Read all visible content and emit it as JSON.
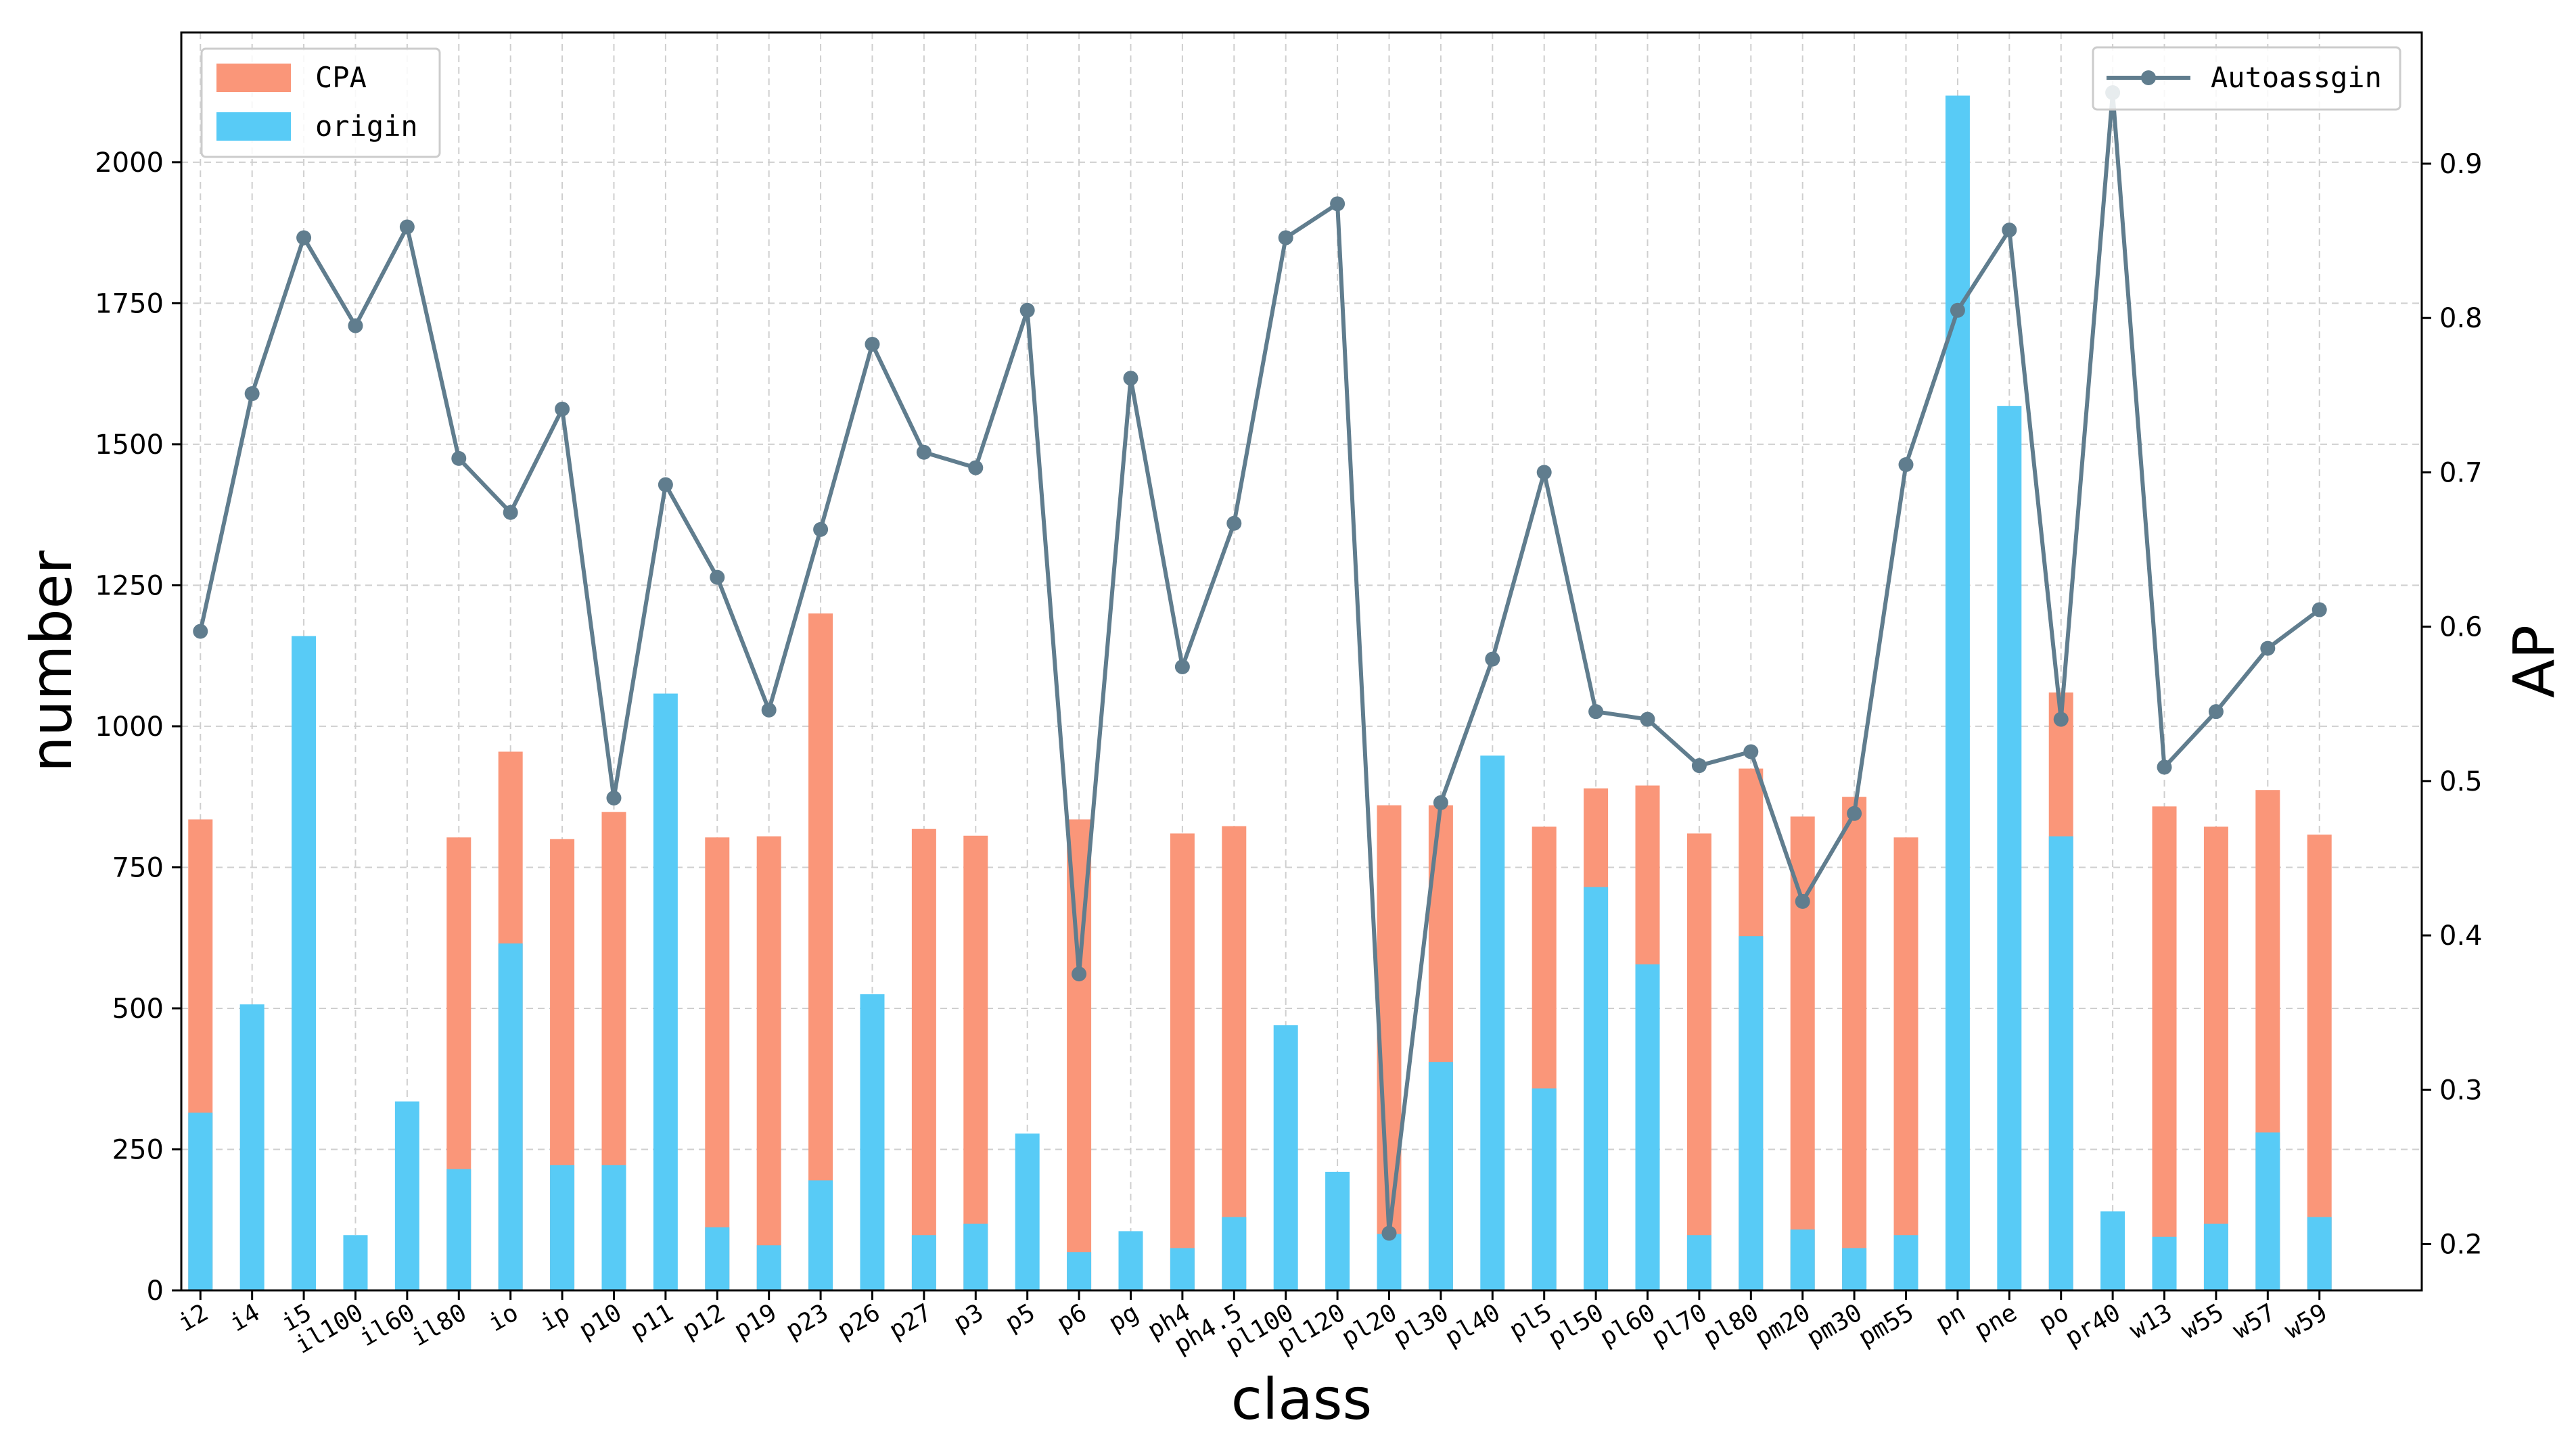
{
  "chart_data": {
    "type": "bar",
    "stacked": true,
    "xlabel": "class",
    "ylabel": "number",
    "y2label": "AP",
    "ylim": [
      0,
      2230
    ],
    "y2lim": [
      0.17,
      0.985
    ],
    "yticks": [
      "0",
      "250",
      "500",
      "750",
      "1000",
      "1250",
      "1500",
      "1750",
      "2000"
    ],
    "y2ticks": [
      "0.2",
      "0.3",
      "0.4",
      "0.5",
      "0.6",
      "0.7",
      "0.8",
      "0.9"
    ],
    "grid": true,
    "categories": [
      "i2",
      "i4",
      "i5",
      "il100",
      "il60",
      "il80",
      "io",
      "ip",
      "p10",
      "p11",
      "p12",
      "p19",
      "p23",
      "p26",
      "p27",
      "p3",
      "p5",
      "p6",
      "pg",
      "ph4",
      "ph4.5",
      "pl100",
      "pl120",
      "pl20",
      "pl30",
      "pl40",
      "pl5",
      "pl50",
      "pl60",
      "pl70",
      "pl80",
      "pm20",
      "pm30",
      "pm55",
      "pn",
      "pne",
      "po",
      "pr40",
      "w13",
      "w55",
      "w57",
      "w59"
    ],
    "series": [
      {
        "name": "CPA",
        "kind": "bar",
        "axis": "left",
        "color": "#fa9679",
        "values": [
          835,
          0,
          0,
          0,
          0,
          803,
          955,
          800,
          848,
          0,
          803,
          805,
          1200,
          0,
          818,
          806,
          0,
          835,
          0,
          810,
          823,
          0,
          0,
          860,
          860,
          0,
          822,
          890,
          895,
          810,
          925,
          840,
          875,
          803,
          0,
          0,
          1060,
          0,
          858,
          822,
          887,
          808
        ]
      },
      {
        "name": "origin",
        "kind": "bar",
        "axis": "left",
        "color": "#58cbf6",
        "values": [
          315,
          507,
          1160,
          98,
          335,
          215,
          615,
          222,
          222,
          1058,
          112,
          80,
          195,
          525,
          98,
          118,
          278,
          68,
          105,
          75,
          130,
          470,
          210,
          100,
          405,
          948,
          358,
          715,
          578,
          98,
          628,
          108,
          75,
          98,
          2118,
          1568,
          805,
          140,
          95,
          118,
          280,
          130
        ]
      },
      {
        "name": "Autoassgin",
        "kind": "line",
        "axis": "right",
        "color": "#607d8e",
        "values": [
          0.597,
          0.751,
          0.852,
          0.795,
          0.859,
          0.709,
          0.674,
          0.741,
          0.489,
          0.692,
          0.632,
          0.546,
          0.663,
          0.783,
          0.713,
          0.703,
          0.805,
          0.375,
          0.761,
          0.574,
          0.667,
          0.852,
          0.874,
          0.207,
          0.486,
          0.579,
          0.7,
          0.545,
          0.54,
          0.51,
          0.519,
          0.422,
          0.479,
          0.705,
          0.805,
          0.857,
          0.54,
          0.946,
          0.509,
          0.545,
          0.586,
          0.611
        ]
      }
    ],
    "legends": {
      "bars_placement": "top-left",
      "line_placement": "top-right"
    }
  }
}
